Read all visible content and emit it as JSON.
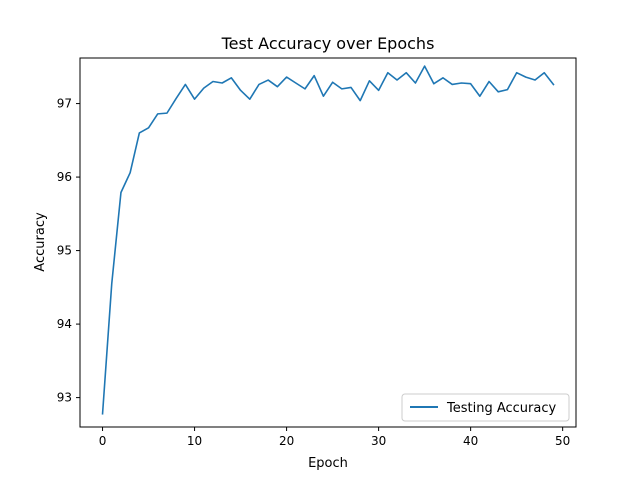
{
  "chart_data": {
    "type": "line",
    "title": "Test Accuracy over Epochs",
    "xlabel": "Epoch",
    "ylabel": "Accuracy",
    "xlim": [
      -2.45,
      51.45
    ],
    "ylim": [
      92.6,
      97.62
    ],
    "xticks": [
      0,
      10,
      20,
      30,
      40,
      50
    ],
    "yticks": [
      93,
      94,
      95,
      96,
      97
    ],
    "grid": false,
    "legend_position": "lower right",
    "series": [
      {
        "name": "Testing Accuracy",
        "color": "#1f77b4",
        "x": [
          0,
          1,
          2,
          3,
          4,
          5,
          6,
          7,
          8,
          9,
          10,
          11,
          12,
          13,
          14,
          15,
          16,
          17,
          18,
          19,
          20,
          21,
          22,
          23,
          24,
          25,
          26,
          27,
          28,
          29,
          30,
          31,
          32,
          33,
          34,
          35,
          36,
          37,
          38,
          39,
          40,
          41,
          42,
          43,
          44,
          45,
          46,
          47,
          48,
          49
        ],
        "y": [
          92.78,
          94.55,
          95.79,
          96.06,
          96.6,
          96.67,
          96.86,
          96.87,
          97.07,
          97.26,
          97.06,
          97.21,
          97.3,
          97.28,
          97.35,
          97.18,
          97.06,
          97.26,
          97.32,
          97.23,
          97.36,
          97.28,
          97.2,
          97.38,
          97.1,
          97.29,
          97.2,
          97.22,
          97.04,
          97.31,
          97.18,
          97.42,
          97.32,
          97.42,
          97.28,
          97.51,
          97.27,
          97.35,
          97.26,
          97.28,
          97.27,
          97.1,
          97.3,
          97.16,
          97.19,
          97.42,
          97.36,
          97.32,
          97.42,
          97.26
        ]
      }
    ]
  }
}
